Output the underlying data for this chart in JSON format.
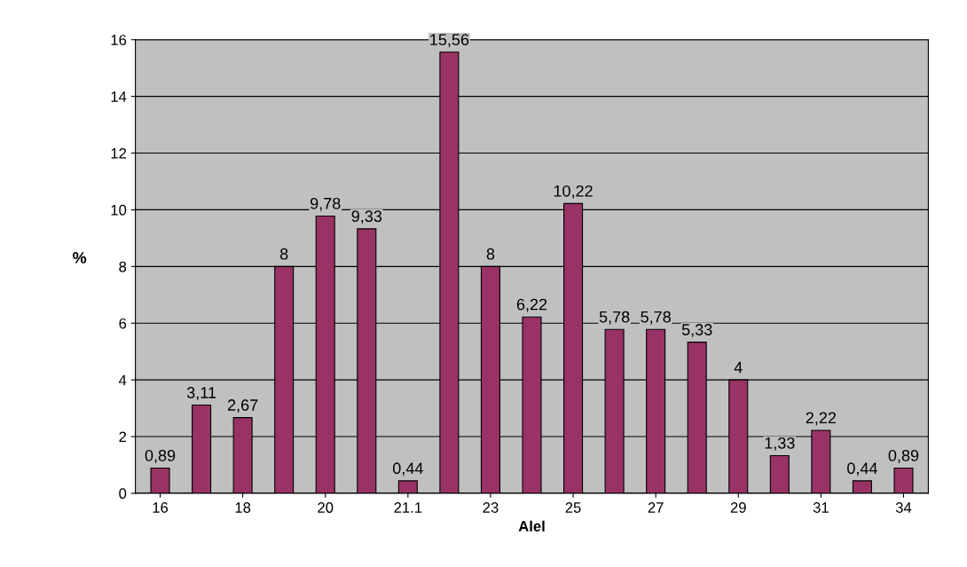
{
  "chart_data": {
    "type": "bar",
    "xlabel": "Alel",
    "ylabel": "%",
    "categories": [
      "16",
      null,
      "18",
      null,
      "20",
      null,
      "21.1",
      null,
      "23",
      null,
      "25",
      null,
      "27",
      null,
      "29",
      null,
      "31",
      null,
      "34"
    ],
    "values": [
      0.89,
      3.11,
      2.67,
      8,
      9.78,
      9.33,
      0.44,
      15.56,
      8,
      6.22,
      10.22,
      5.78,
      5.78,
      5.33,
      4,
      1.33,
      2.22,
      0.44,
      0.89
    ],
    "value_labels": [
      "0,89",
      "3,11",
      "2,67",
      "8",
      "9,78",
      "9,33",
      "0,44",
      "15,56",
      "8",
      "6,22",
      "10,22",
      "5,78",
      "5,78",
      "5,33",
      "4",
      "1,33",
      "2,22",
      "0,44",
      "0,89"
    ],
    "color": "#993366",
    "ylim": [
      0,
      16
    ],
    "yticks": [
      0,
      2,
      4,
      6,
      8,
      10,
      12,
      14,
      16
    ],
    "grid": "y"
  }
}
